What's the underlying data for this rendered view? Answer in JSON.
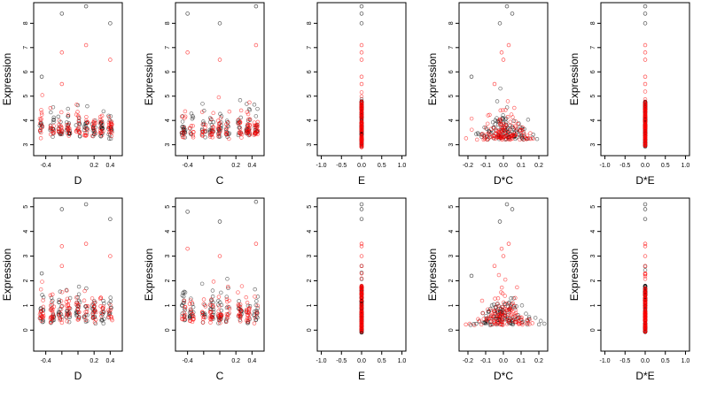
{
  "chart_data": [
    {
      "type": "scatter",
      "row": 1,
      "col": 1,
      "xlabel": "D",
      "ylabel": "Expression",
      "xlim": [
        -0.55,
        0.55
      ],
      "ylim": [
        2.55,
        8.85
      ],
      "xticks": [
        -0.4,
        -0.2,
        0,
        0.2,
        0.4
      ],
      "xtick_labels": [
        "-0.4",
        "",
        "",
        "0.2",
        "0.4"
      ],
      "yticks": [
        3,
        4,
        5,
        6,
        7,
        8
      ],
      "ytick_labels": [
        "3",
        "4",
        "5",
        "6",
        "7",
        "8"
      ],
      "x_pattern": "jitter",
      "x_groups": [
        -0.45,
        -0.32,
        -0.22,
        -0.12,
        0.0,
        0.1,
        0.2,
        0.3,
        0.4
      ],
      "outliers_black": [
        [
          -0.45,
          5.8
        ],
        [
          -0.2,
          8.4
        ],
        [
          0.1,
          8.7
        ],
        [
          0.4,
          8.0
        ]
      ],
      "outliers_red": [
        [
          -0.2,
          6.8
        ],
        [
          -0.2,
          5.5
        ],
        [
          0.1,
          7.1
        ],
        [
          0.4,
          6.5
        ]
      ],
      "series": [
        {
          "color": "#000000"
        },
        {
          "color": "#ff0000"
        }
      ]
    },
    {
      "type": "scatter",
      "row": 1,
      "col": 2,
      "xlabel": "C",
      "ylabel": "Expression",
      "xlim": [
        -0.55,
        0.55
      ],
      "ylim": [
        2.55,
        8.85
      ],
      "xticks": [
        -0.4,
        -0.2,
        0,
        0.2,
        0.4
      ],
      "xtick_labels": [
        "-0.4",
        "",
        "",
        "0.2",
        "0.4"
      ],
      "yticks": [
        3,
        4,
        5,
        6,
        7,
        8
      ],
      "ytick_labels": [
        "3",
        "4",
        "5",
        "6",
        "7",
        "8"
      ],
      "x_pattern": "jitter",
      "x_groups": [
        -0.45,
        -0.35,
        -0.2,
        -0.1,
        0.0,
        0.1,
        0.25,
        0.35,
        0.45
      ],
      "outliers_black": [
        [
          -0.4,
          8.4
        ],
        [
          0.0,
          8.0
        ],
        [
          0.45,
          8.7
        ]
      ],
      "outliers_red": [
        [
          -0.4,
          6.8
        ],
        [
          0.0,
          6.5
        ],
        [
          0.45,
          7.1
        ]
      ],
      "series": [
        {
          "color": "#000000"
        },
        {
          "color": "#ff0000"
        }
      ]
    },
    {
      "type": "scatter",
      "row": 1,
      "col": 3,
      "xlabel": "E",
      "ylabel": "",
      "xlim": [
        -1.1,
        1.1
      ],
      "ylim": [
        2.55,
        8.85
      ],
      "xticks": [
        -1.0,
        -0.5,
        0,
        0.5,
        1.0
      ],
      "xtick_labels": [
        "-1.0",
        "-0.5",
        "0.0",
        "0.5",
        "1.0"
      ],
      "yticks": [
        3,
        4,
        5,
        6,
        7,
        8
      ],
      "ytick_labels": [
        "3",
        "4",
        "5",
        "6",
        "7",
        "8"
      ],
      "x_pattern": "zero",
      "x_groups": [
        0
      ],
      "outliers_black": [
        [
          0,
          8.7
        ],
        [
          0,
          8.4
        ],
        [
          0,
          8.0
        ]
      ],
      "outliers_red": [
        [
          0,
          7.1
        ],
        [
          0,
          6.8
        ],
        [
          0,
          6.5
        ],
        [
          0,
          5.8
        ],
        [
          0,
          5.5
        ]
      ],
      "series": [
        {
          "color": "#000000"
        },
        {
          "color": "#ff0000"
        }
      ]
    },
    {
      "type": "scatter",
      "row": 1,
      "col": 4,
      "xlabel": "D*C",
      "ylabel": "Expression",
      "xlim": [
        -0.25,
        0.25
      ],
      "ylim": [
        2.55,
        8.85
      ],
      "xticks": [
        -0.2,
        -0.1,
        0,
        0.1,
        0.2
      ],
      "xtick_labels": [
        "-0.2",
        "-0.1",
        "0.0",
        "0.1",
        "0.2"
      ],
      "yticks": [
        3,
        4,
        5,
        6,
        7,
        8
      ],
      "ytick_labels": [
        "3",
        "4",
        "5",
        "6",
        "7",
        "8"
      ],
      "x_pattern": "center",
      "x_groups": [
        0
      ],
      "outliers_black": [
        [
          0.02,
          8.7
        ],
        [
          0.05,
          8.4
        ],
        [
          -0.02,
          8.0
        ],
        [
          -0.18,
          5.8
        ]
      ],
      "outliers_red": [
        [
          0.03,
          7.1
        ],
        [
          -0.01,
          6.8
        ],
        [
          0.0,
          6.5
        ],
        [
          -0.05,
          5.5
        ]
      ],
      "series": [
        {
          "color": "#000000"
        },
        {
          "color": "#ff0000"
        }
      ]
    },
    {
      "type": "scatter",
      "row": 1,
      "col": 5,
      "xlabel": "D*E",
      "ylabel": "Expression",
      "xlim": [
        -1.1,
        1.1
      ],
      "ylim": [
        2.55,
        8.85
      ],
      "xticks": [
        -1.0,
        -0.5,
        0,
        0.5,
        1.0
      ],
      "xtick_labels": [
        "-1.0",
        "-0.5",
        "0.0",
        "0.5",
        "1.0"
      ],
      "yticks": [
        3,
        4,
        5,
        6,
        7,
        8
      ],
      "ytick_labels": [
        "3",
        "4",
        "5",
        "6",
        "7",
        "8"
      ],
      "x_pattern": "zero",
      "x_groups": [
        0
      ],
      "outliers_black": [
        [
          0,
          8.7
        ],
        [
          0,
          8.4
        ],
        [
          0,
          8.0
        ]
      ],
      "outliers_red": [
        [
          0,
          7.1
        ],
        [
          0,
          6.8
        ],
        [
          0,
          6.5
        ],
        [
          0,
          5.8
        ],
        [
          0,
          5.5
        ]
      ],
      "series": [
        {
          "color": "#000000"
        },
        {
          "color": "#ff0000"
        }
      ]
    },
    {
      "type": "scatter",
      "row": 2,
      "col": 1,
      "xlabel": "D",
      "ylabel": "Expression",
      "xlim": [
        -0.55,
        0.55
      ],
      "ylim": [
        -0.85,
        5.35
      ],
      "xticks": [
        -0.4,
        -0.2,
        0,
        0.2,
        0.4
      ],
      "xtick_labels": [
        "-0.4",
        "",
        "",
        "0.2",
        "0.4"
      ],
      "yticks": [
        0,
        1,
        2,
        3,
        4,
        5
      ],
      "ytick_labels": [
        "0",
        "1",
        "2",
        "3",
        "4",
        "5"
      ],
      "x_pattern": "jitter",
      "x_groups": [
        -0.45,
        -0.32,
        -0.22,
        -0.12,
        0.0,
        0.1,
        0.2,
        0.3,
        0.4
      ],
      "outliers_black": [
        [
          -0.45,
          2.3
        ],
        [
          -0.2,
          4.9
        ],
        [
          0.1,
          5.1
        ],
        [
          0.4,
          4.5
        ]
      ],
      "outliers_red": [
        [
          -0.2,
          3.4
        ],
        [
          -0.2,
          2.6
        ],
        [
          0.1,
          3.5
        ],
        [
          0.4,
          3.0
        ]
      ],
      "series": [
        {
          "color": "#000000"
        },
        {
          "color": "#ff0000"
        }
      ]
    },
    {
      "type": "scatter",
      "row": 2,
      "col": 2,
      "xlabel": "C",
      "ylabel": "Expression",
      "xlim": [
        -0.55,
        0.55
      ],
      "ylim": [
        -0.85,
        5.35
      ],
      "xticks": [
        -0.4,
        -0.2,
        0,
        0.2,
        0.4
      ],
      "xtick_labels": [
        "-0.4",
        "",
        "",
        "0.2",
        "0.4"
      ],
      "yticks": [
        0,
        1,
        2,
        3,
        4,
        5
      ],
      "ytick_labels": [
        "0",
        "1",
        "2",
        "3",
        "4",
        "5"
      ],
      "x_pattern": "jitter",
      "x_groups": [
        -0.45,
        -0.35,
        -0.2,
        -0.1,
        0.0,
        0.1,
        0.25,
        0.35,
        0.45
      ],
      "outliers_black": [
        [
          -0.4,
          4.8
        ],
        [
          0.0,
          4.4
        ],
        [
          0.45,
          5.2
        ]
      ],
      "outliers_red": [
        [
          -0.4,
          3.3
        ],
        [
          0.0,
          3.0
        ],
        [
          0.45,
          3.5
        ]
      ],
      "series": [
        {
          "color": "#000000"
        },
        {
          "color": "#ff0000"
        }
      ]
    },
    {
      "type": "scatter",
      "row": 2,
      "col": 3,
      "xlabel": "E",
      "ylabel": "",
      "xlim": [
        -1.1,
        1.1
      ],
      "ylim": [
        -0.85,
        5.35
      ],
      "xticks": [
        -1.0,
        -0.5,
        0,
        0.5,
        1.0
      ],
      "xtick_labels": [
        "-1.0",
        "-0.5",
        "0.0",
        "0.5",
        "1.0"
      ],
      "yticks": [
        0,
        1,
        2,
        3,
        4,
        5
      ],
      "ytick_labels": [
        "0",
        "1",
        "2",
        "3",
        "4",
        "5"
      ],
      "x_pattern": "zero",
      "x_groups": [
        0
      ],
      "outliers_black": [
        [
          0,
          5.1
        ],
        [
          0,
          4.9
        ],
        [
          0,
          4.5
        ]
      ],
      "outliers_red": [
        [
          0,
          3.5
        ],
        [
          0,
          3.4
        ],
        [
          0,
          3.0
        ],
        [
          0,
          2.6
        ],
        [
          0,
          2.3
        ]
      ],
      "series": [
        {
          "color": "#000000"
        },
        {
          "color": "#ff0000"
        }
      ]
    },
    {
      "type": "scatter",
      "row": 2,
      "col": 4,
      "xlabel": "D*C",
      "ylabel": "Expression",
      "xlim": [
        -0.25,
        0.25
      ],
      "ylim": [
        -0.85,
        5.35
      ],
      "xticks": [
        -0.2,
        -0.1,
        0,
        0.1,
        0.2
      ],
      "xtick_labels": [
        "-0.2",
        "-0.1",
        "0.0",
        "0.1",
        "0.2"
      ],
      "yticks": [
        0,
        1,
        2,
        3,
        4,
        5
      ],
      "ytick_labels": [
        "0",
        "1",
        "2",
        "3",
        "4",
        "5"
      ],
      "x_pattern": "center",
      "x_groups": [
        0
      ],
      "outliers_black": [
        [
          0.02,
          5.1
        ],
        [
          0.05,
          4.9
        ],
        [
          -0.02,
          4.4
        ],
        [
          -0.18,
          2.2
        ]
      ],
      "outliers_red": [
        [
          0.03,
          3.5
        ],
        [
          -0.01,
          3.3
        ],
        [
          0.0,
          3.0
        ],
        [
          -0.05,
          2.6
        ]
      ],
      "series": [
        {
          "color": "#000000"
        },
        {
          "color": "#ff0000"
        }
      ]
    },
    {
      "type": "scatter",
      "row": 2,
      "col": 5,
      "xlabel": "D*E",
      "ylabel": "Expression",
      "xlim": [
        -1.1,
        1.1
      ],
      "ylim": [
        -0.85,
        5.35
      ],
      "xticks": [
        -1.0,
        -0.5,
        0,
        0.5,
        1.0
      ],
      "xtick_labels": [
        "-1.0",
        "-0.5",
        "0.0",
        "0.5",
        "1.0"
      ],
      "yticks": [
        0,
        1,
        2,
        3,
        4,
        5
      ],
      "ytick_labels": [
        "0",
        "1",
        "2",
        "3",
        "4",
        "5"
      ],
      "x_pattern": "zero",
      "x_groups": [
        0
      ],
      "outliers_black": [
        [
          0,
          5.1
        ],
        [
          0,
          4.9
        ],
        [
          0,
          4.5
        ]
      ],
      "outliers_red": [
        [
          0,
          3.5
        ],
        [
          0,
          3.4
        ],
        [
          0,
          3.0
        ],
        [
          0,
          2.6
        ],
        [
          0,
          2.3
        ]
      ],
      "series": [
        {
          "color": "#000000"
        },
        {
          "color": "#ff0000"
        }
      ]
    }
  ]
}
